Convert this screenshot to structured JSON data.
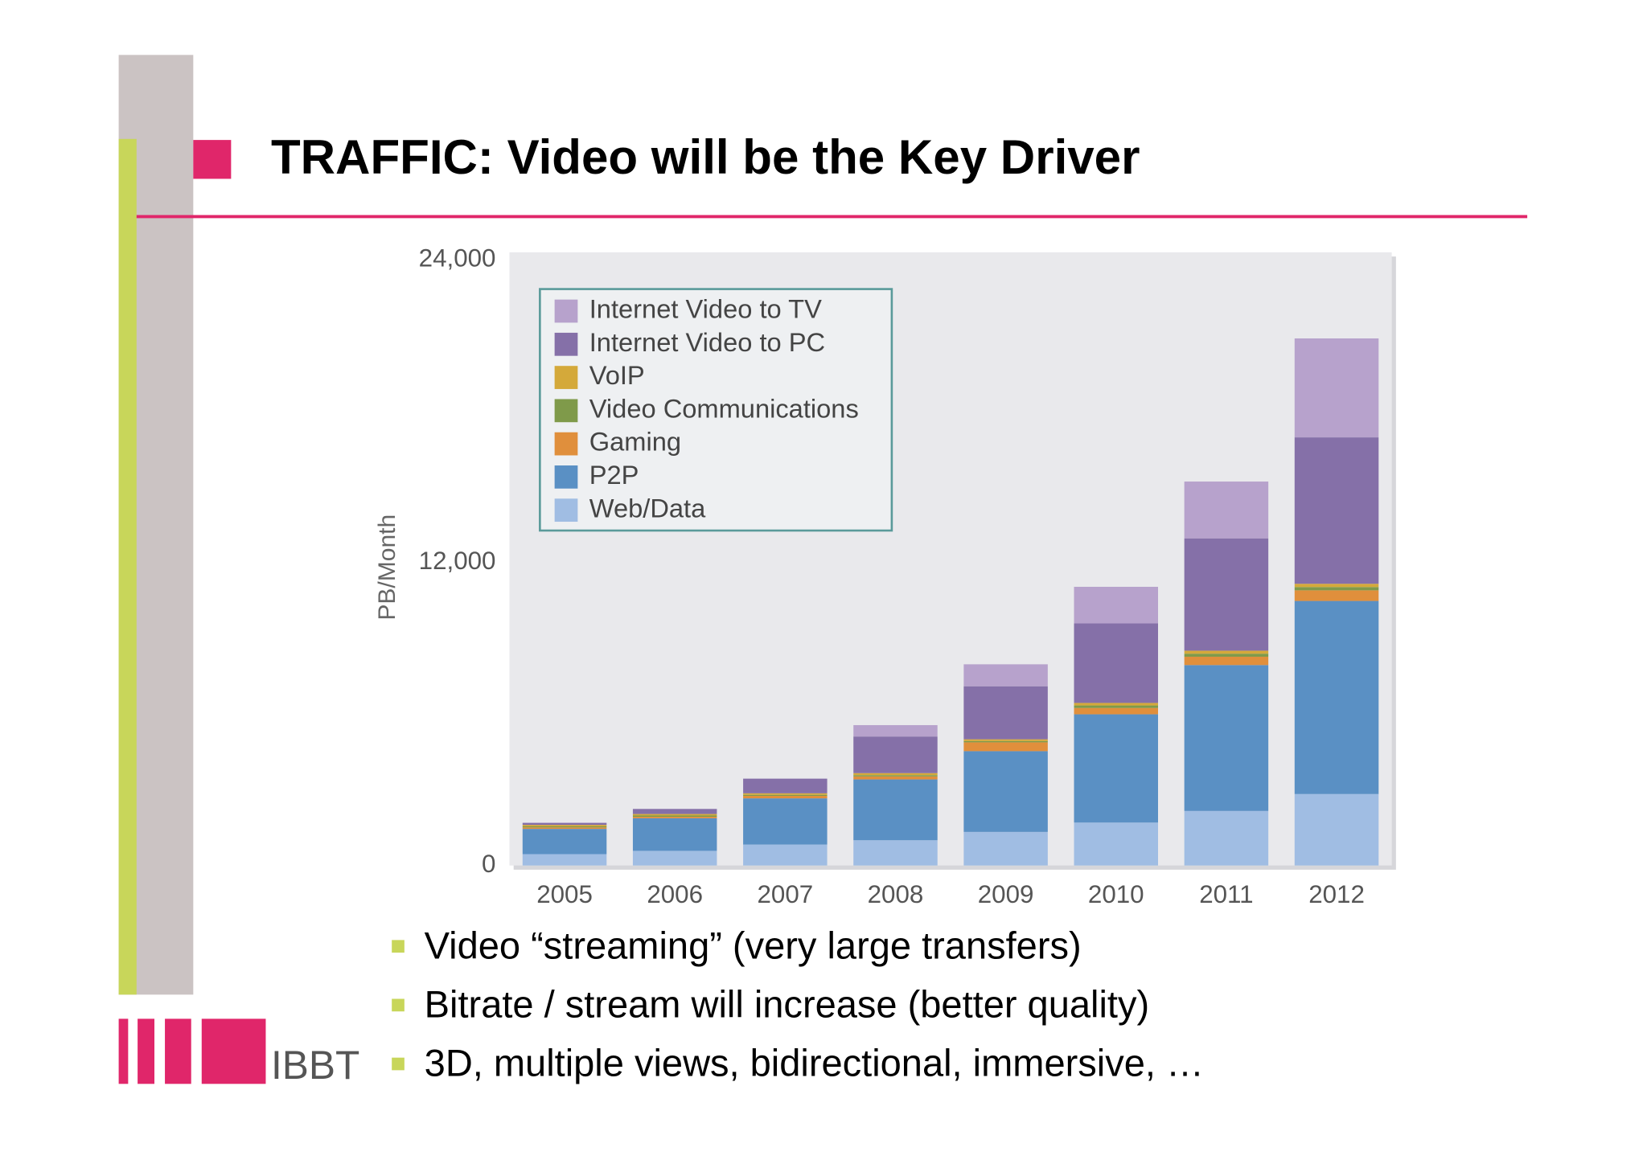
{
  "slide": {
    "title": "TRAFFIC: Video will be the Key Driver",
    "bullets": [
      "Video “streaming” (very large transfers)",
      "Bitrate / stream will increase (better quality)",
      "3D, multiple views, bidirectional, immersive, …"
    ],
    "logo": "IBBT"
  },
  "chart_data": {
    "type": "stacked-bar",
    "ylabel": "PB/Month",
    "categories": [
      "2005",
      "2006",
      "2007",
      "2008",
      "2009",
      "2010",
      "2011",
      "2012"
    ],
    "series": [
      {
        "name": "Web/Data",
        "color": "#a0bde3",
        "values": [
          450,
          580,
          830,
          1000,
          1330,
          1700,
          2160,
          2830
        ]
      },
      {
        "name": "P2P",
        "color": "#5a90c4",
        "values": [
          1000,
          1290,
          1830,
          2410,
          3200,
          4290,
          5780,
          7650
        ]
      },
      {
        "name": "Gaming",
        "color": "#e08f3c",
        "values": [
          60,
          60,
          100,
          120,
          350,
          250,
          330,
          420
        ]
      },
      {
        "name": "Video Communications",
        "color": "#7f9a4a",
        "values": [
          40,
          50,
          40,
          50,
          50,
          100,
          120,
          130
        ]
      },
      {
        "name": "VoIP",
        "color": "#d4a93a",
        "values": [
          60,
          60,
          60,
          80,
          70,
          100,
          120,
          130
        ]
      },
      {
        "name": "Internet Video to PC",
        "color": "#8570a8",
        "values": [
          80,
          200,
          580,
          1450,
          2100,
          3150,
          4450,
          5800
        ]
      },
      {
        "name": "Internet Video to TV",
        "color": "#b7a2cc",
        "values": [
          0,
          0,
          0,
          450,
          870,
          1450,
          2250,
          3920
        ]
      }
    ],
    "ylim": [
      0,
      24000
    ],
    "yticks": [
      0,
      {
        "value": 12000,
        "label": "12,000"
      },
      {
        "value": 24000,
        "label": "24,000"
      }
    ],
    "grid": false
  }
}
